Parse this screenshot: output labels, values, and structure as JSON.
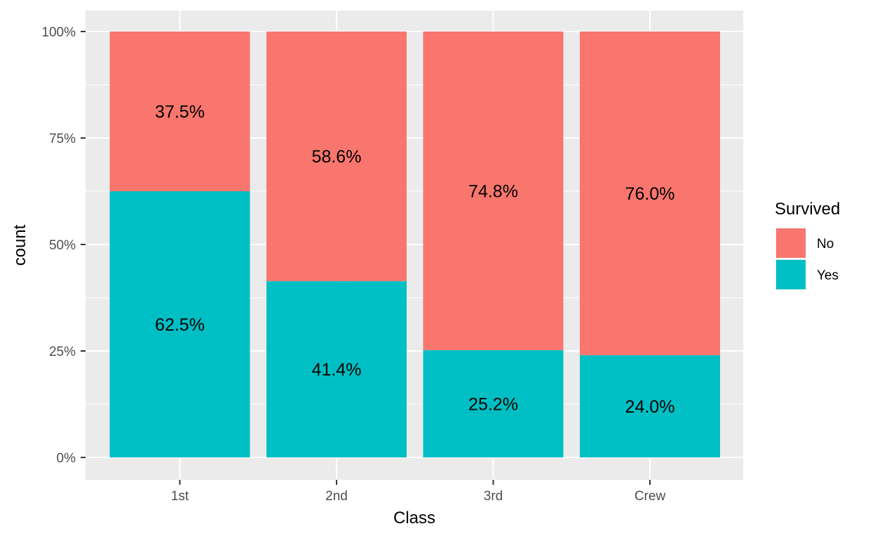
{
  "chart_data": {
    "type": "bar",
    "stacked": true,
    "normalized": true,
    "categories": [
      "1st",
      "2nd",
      "3rd",
      "Crew"
    ],
    "series": [
      {
        "name": "No",
        "values": [
          37.5,
          58.6,
          74.8,
          76.0
        ],
        "color": "#F8766D"
      },
      {
        "name": "Yes",
        "values": [
          62.5,
          41.4,
          25.2,
          24.0
        ],
        "color": "#00BFC4"
      }
    ],
    "data_labels": [
      [
        "37.5%",
        "58.6%",
        "74.8%",
        "76.0%"
      ],
      [
        "62.5%",
        "41.4%",
        "25.2%",
        "24.0%"
      ]
    ],
    "xlabel": "Class",
    "ylabel": "count",
    "ylim": [
      0,
      100
    ],
    "yticks": [
      0,
      25,
      50,
      75,
      100
    ],
    "ytick_labels": [
      "0%",
      "25%",
      "50%",
      "75%",
      "100%"
    ],
    "legend": {
      "title": "Survived",
      "position": "right"
    },
    "grid": true,
    "panel_background": "#EBEBEB",
    "grid_color": "#FFFFFF"
  }
}
